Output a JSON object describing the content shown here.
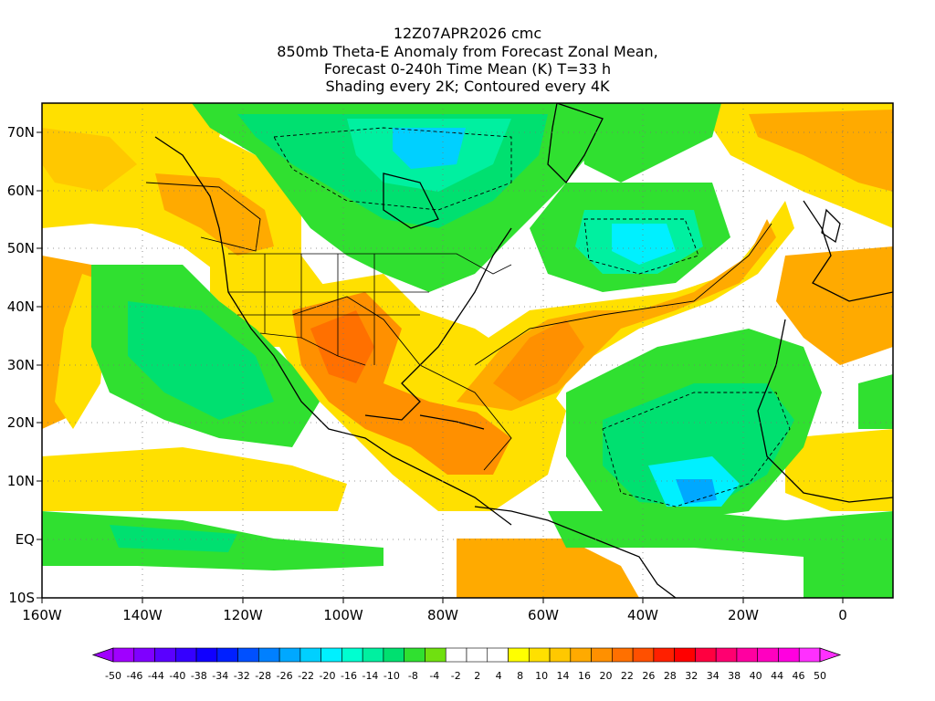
{
  "title": {
    "line1": "12Z07APR2026 cmc",
    "line2": "850mb Theta-E Anomaly from Forecast Zonal Mean,",
    "line3": "Forecast 0-240h Time Mean (K) T=33 h",
    "line4": "Shading every 2K; Contoured every 4K"
  },
  "map": {
    "lat_labels": [
      "70N",
      "60N",
      "50N",
      "40N",
      "30N",
      "20N",
      "10N",
      "EQ",
      "10S"
    ],
    "lon_labels": [
      "160W",
      "140W",
      "120W",
      "100W",
      "80W",
      "60W",
      "40W",
      "20W",
      "0"
    ],
    "extent": {
      "lon_min": -160,
      "lon_max": 10,
      "lat_min": -10,
      "lat_max": 75
    },
    "ocean_background": "#ffffff",
    "contour_color": "#000000",
    "coastline_color": "#000000"
  },
  "colorbar": {
    "levels": [
      "-50",
      "-46",
      "-44",
      "-40",
      "-38",
      "-34",
      "-32",
      "-28",
      "-26",
      "-22",
      "-20",
      "-16",
      "-14",
      "-10",
      "-8",
      "-4",
      "-2",
      "2",
      "4",
      "8",
      "10",
      "14",
      "16",
      "20",
      "22",
      "26",
      "28",
      "32",
      "34",
      "38",
      "40",
      "44",
      "46",
      "50"
    ],
    "colors": [
      "#a000ff",
      "#7f00ff",
      "#5a00ff",
      "#3500ff",
      "#1000ff",
      "#0020ff",
      "#0050ff",
      "#0080ff",
      "#00a8ff",
      "#00d0ff",
      "#00f0ff",
      "#00ffd0",
      "#00f0a0",
      "#00e070",
      "#30e030",
      "#70e010",
      "#ffffff",
      "#ffffff",
      "#ffffff",
      "#ffff00",
      "#ffe000",
      "#ffc800",
      "#ffaa00",
      "#ff9000",
      "#ff7000",
      "#ff5000",
      "#ff2000",
      "#ff0000",
      "#ff0040",
      "#ff0070",
      "#ff00a0",
      "#ff00c0",
      "#ff00e0",
      "#ff30ff"
    ]
  },
  "anomaly_regions": [
    {
      "name": "Canada Arctic negative anomaly",
      "category": "cold",
      "min_level": "-22"
    },
    {
      "name": "North Atlantic negative anomaly",
      "category": "cold",
      "min_level": "-20"
    },
    {
      "name": "Eastern Tropical Atlantic negative anomaly",
      "category": "cold",
      "min_level": "-26"
    },
    {
      "name": "Eastern Pacific negative anomaly",
      "category": "cold",
      "min_level": "-14"
    },
    {
      "name": "Mexico / Gulf positive anomaly",
      "category": "warm",
      "max_level": "22"
    },
    {
      "name": "Central Atlantic positive anomaly",
      "category": "warm",
      "max_level": "20"
    },
    {
      "name": "Alaska / Western Canada positive anomaly",
      "category": "warm",
      "max_level": "16"
    },
    {
      "name": "Northern Europe positive anomaly",
      "category": "warm",
      "max_level": "20"
    }
  ]
}
